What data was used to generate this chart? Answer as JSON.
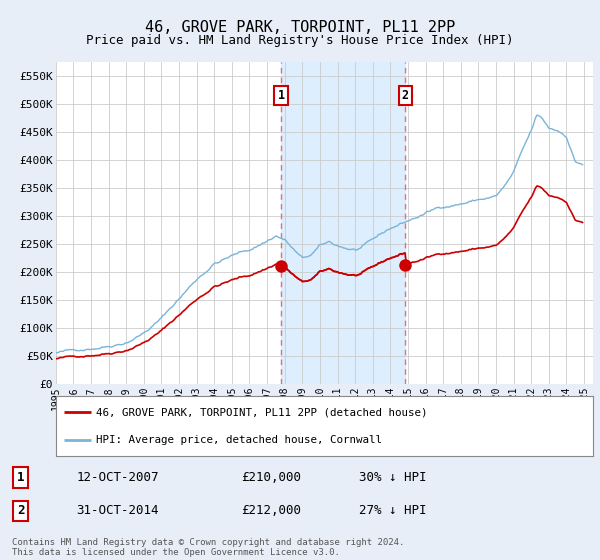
{
  "title": "46, GROVE PARK, TORPOINT, PL11 2PP",
  "subtitle": "Price paid vs. HM Land Registry's House Price Index (HPI)",
  "ylabel_ticks": [
    "£0",
    "£50K",
    "£100K",
    "£150K",
    "£200K",
    "£250K",
    "£300K",
    "£350K",
    "£400K",
    "£450K",
    "£500K",
    "£550K"
  ],
  "ytick_vals": [
    0,
    50000,
    100000,
    150000,
    200000,
    250000,
    300000,
    350000,
    400000,
    450000,
    500000,
    550000
  ],
  "ylim": [
    0,
    575000
  ],
  "xlim_start": 1995.0,
  "xlim_end": 2025.5,
  "xtick_years": [
    1995,
    1996,
    1997,
    1998,
    1999,
    2000,
    2001,
    2002,
    2003,
    2004,
    2005,
    2006,
    2007,
    2008,
    2009,
    2010,
    2011,
    2012,
    2013,
    2014,
    2015,
    2016,
    2017,
    2018,
    2019,
    2020,
    2021,
    2022,
    2023,
    2024,
    2025
  ],
  "sale1_x": 2007.79,
  "sale1_y": 210000,
  "sale2_x": 2014.84,
  "sale2_y": 212000,
  "sale1_date": "12-OCT-2007",
  "sale1_price": "£210,000",
  "sale1_hpi": "30% ↓ HPI",
  "sale2_date": "31-OCT-2014",
  "sale2_price": "£212,000",
  "sale2_hpi": "27% ↓ HPI",
  "hpi_color": "#7ab4d8",
  "price_color": "#cc0000",
  "vline_color": "#e87070",
  "shade_color": "#ddeeff",
  "grid_color": "#cccccc",
  "legend_entry1": "46, GROVE PARK, TORPOINT, PL11 2PP (detached house)",
  "legend_entry2": "HPI: Average price, detached house, Cornwall",
  "footnote": "Contains HM Land Registry data © Crown copyright and database right 2024.\nThis data is licensed under the Open Government Licence v3.0.",
  "background_color": "#e8eef8",
  "plot_bg_color": "#ffffff",
  "title_fontsize": 11,
  "subtitle_fontsize": 9
}
